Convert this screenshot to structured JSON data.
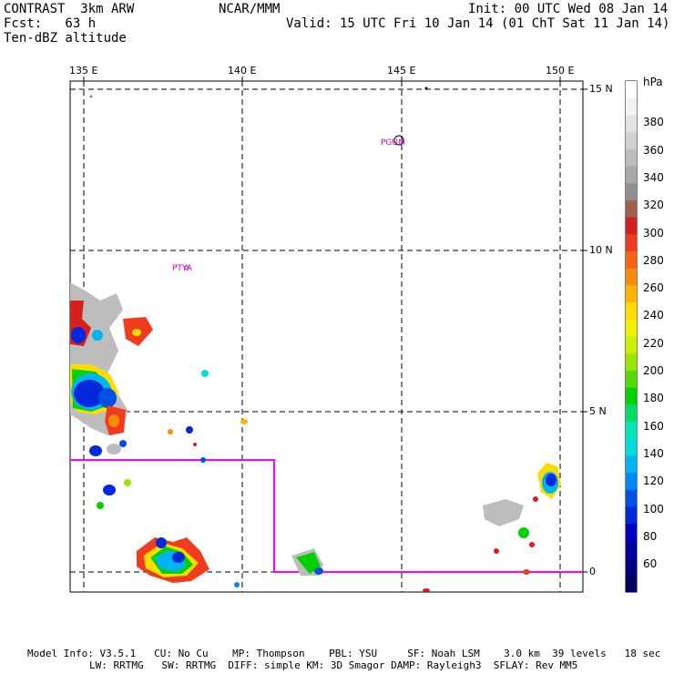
{
  "header": {
    "line1_left": "CONTRAST  3km ARW",
    "line1_center": "NCAR/MMM",
    "line1_right": "Init: 00 UTC Wed 08 Jan 14",
    "line2_left": "Fcst:   63 h",
    "line2_right": "Valid: 15 UTC Fri 10 Jan 14 (01 ChT Sat 11 Jan 14)",
    "line3_left": "Ten-dBZ altitude"
  },
  "map": {
    "lon_ticks": [
      "135 E",
      "140 E",
      "145 E",
      "150 E"
    ],
    "lat_ticks": [
      "15 N",
      "10 N",
      "5 N",
      "0"
    ],
    "stations": [
      "PGUM",
      "PTYA"
    ]
  },
  "colorbar": {
    "unit": "hPa",
    "labels": [
      "380",
      "360",
      "340",
      "320",
      "300",
      "280",
      "260",
      "240",
      "220",
      "200",
      "180",
      "160",
      "140",
      "120",
      "100",
      "80",
      "60"
    ],
    "colors": [
      "#ffffff",
      "#f2f2f2",
      "#e2e2e2",
      "#d0d0d0",
      "#bdbdbd",
      "#a8a8a8",
      "#909090",
      "#a06050",
      "#d81e1e",
      "#f03c1e",
      "#f56414",
      "#fa8c0a",
      "#ffb400",
      "#ffdc00",
      "#f0f000",
      "#c8f000",
      "#96e600",
      "#50dc00",
      "#00d200",
      "#00dc64",
      "#00e6b4",
      "#00dcdc",
      "#00b4f0",
      "#0087f0",
      "#0050e6",
      "#0028dc",
      "#0000c8",
      "#0000a0",
      "#000080",
      "#000060"
    ]
  },
  "footer": {
    "line1": "Model Info: V3.5.1   CU: No Cu    MP: Thompson    PBL: YSU     SF: Noah LSM    3.0 km  39 levels   18 sec",
    "line2": "LW: RRTMG   SW: RRTMG  DIFF: simple KM: 3D Smagor DAMP: Rayleigh3  SFLAY: Rev MM5"
  }
}
